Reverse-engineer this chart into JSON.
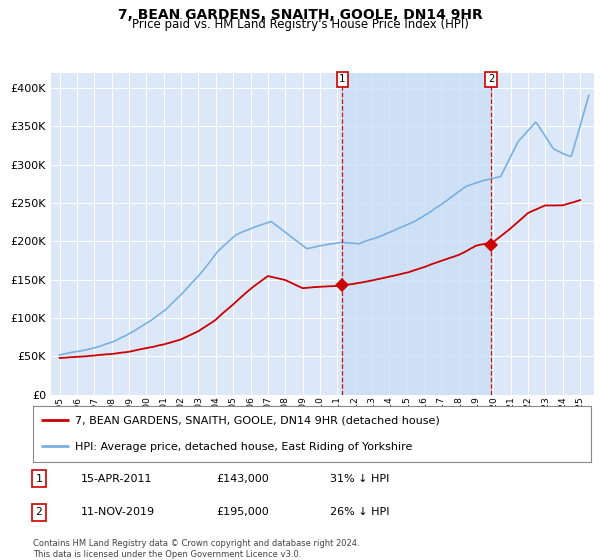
{
  "title": "7, BEAN GARDENS, SNAITH, GOOLE, DN14 9HR",
  "subtitle": "Price paid vs. HM Land Registry's House Price Index (HPI)",
  "title_fontsize": 10,
  "subtitle_fontsize": 8.5,
  "plot_bg_color": "#dce8f8",
  "hpi_color": "#7ab0e0",
  "price_color": "#cc0000",
  "marker_color": "#cc0000",
  "ylim": [
    0,
    420000
  ],
  "yticks": [
    0,
    50000,
    100000,
    150000,
    200000,
    250000,
    300000,
    350000,
    400000
  ],
  "footnote": "Contains HM Land Registry data © Crown copyright and database right 2024.\nThis data is licensed under the Open Government Licence v3.0.",
  "legend_house": "7, BEAN GARDENS, SNAITH, GOOLE, DN14 9HR (detached house)",
  "legend_hpi": "HPI: Average price, detached house, East Riding of Yorkshire",
  "transaction1_label": "1",
  "transaction1_date": "15-APR-2011",
  "transaction1_price": "£143,000",
  "transaction1_hpi": "31% ↓ HPI",
  "transaction2_label": "2",
  "transaction2_date": "11-NOV-2019",
  "transaction2_price": "£195,000",
  "transaction2_hpi": "26% ↓ HPI",
  "transaction1_x": 2011.29,
  "transaction1_y": 143000,
  "transaction2_x": 2019.86,
  "transaction2_y": 195000,
  "xlim": [
    1994.5,
    2025.8
  ],
  "xtick_start": 1995,
  "xtick_end": 2025
}
